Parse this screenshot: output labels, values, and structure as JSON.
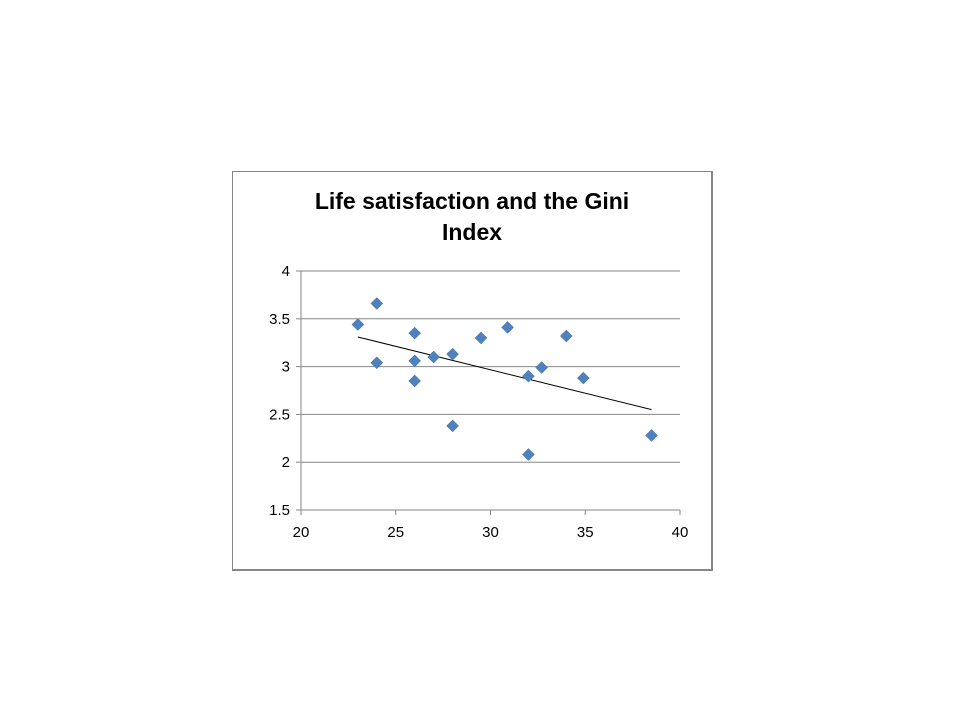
{
  "chart_data": {
    "type": "scatter",
    "title": "Life satisfaction  and the Gini\nIndex",
    "xlabel": "",
    "ylabel": "",
    "xlim": [
      20,
      40
    ],
    "ylim": [
      1.5,
      4
    ],
    "x_ticks": [
      "20",
      "25",
      "30",
      "35",
      "40"
    ],
    "y_ticks": [
      "1.5",
      "2",
      "2.5",
      "3",
      "3.5",
      "4"
    ],
    "grid": "horizontal major gridlines",
    "legend": "none",
    "marker": "diamond",
    "series": [
      {
        "color": "#4F81BD",
        "points": [
          {
            "x": 23.0,
            "y": 3.44
          },
          {
            "x": 24.0,
            "y": 3.66
          },
          {
            "x": 24.0,
            "y": 3.04
          },
          {
            "x": 26.0,
            "y": 3.35
          },
          {
            "x": 26.0,
            "y": 3.06
          },
          {
            "x": 26.0,
            "y": 2.85
          },
          {
            "x": 27.0,
            "y": 3.1
          },
          {
            "x": 28.0,
            "y": 3.13
          },
          {
            "x": 28.0,
            "y": 2.38
          },
          {
            "x": 29.5,
            "y": 3.3
          },
          {
            "x": 30.9,
            "y": 3.41
          },
          {
            "x": 32.0,
            "y": 2.9
          },
          {
            "x": 32.0,
            "y": 2.08
          },
          {
            "x": 32.7,
            "y": 2.99
          },
          {
            "x": 34.0,
            "y": 3.32
          },
          {
            "x": 34.9,
            "y": 2.88
          },
          {
            "x": 38.5,
            "y": 2.28
          }
        ]
      }
    ],
    "trendline": {
      "type": "linear",
      "color": "#000000",
      "from": {
        "x": 23.0,
        "y": 3.31
      },
      "to": {
        "x": 38.5,
        "y": 2.55
      }
    }
  }
}
